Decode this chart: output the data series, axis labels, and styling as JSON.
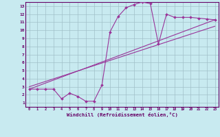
{
  "xlabel": "Windchill (Refroidissement éolien,°C)",
  "bg_color": "#c8eaf0",
  "line_color": "#993399",
  "grid_color": "#a0c0c8",
  "axis_color": "#660066",
  "spine_color": "#660066",
  "x_data": [
    0,
    1,
    2,
    3,
    4,
    5,
    6,
    7,
    8,
    9,
    10,
    11,
    12,
    13,
    14,
    15,
    16,
    17,
    18,
    19,
    20,
    21,
    22,
    23
  ],
  "y_data": [
    2.7,
    2.7,
    2.7,
    2.7,
    1.5,
    2.2,
    1.8,
    1.2,
    1.2,
    3.2,
    9.8,
    11.7,
    12.8,
    13.2,
    13.5,
    13.3,
    8.3,
    12.0,
    11.6,
    11.6,
    11.6,
    11.5,
    11.4,
    11.3
  ],
  "trend1_x": [
    0,
    23
  ],
  "trend1_y": [
    2.7,
    11.3
  ],
  "trend2_x": [
    0,
    23
  ],
  "trend2_y": [
    3.0,
    10.5
  ],
  "xlim": [
    -0.5,
    23.5
  ],
  "ylim": [
    0.5,
    13.5
  ],
  "xticks": [
    0,
    1,
    2,
    3,
    4,
    5,
    6,
    7,
    8,
    9,
    10,
    11,
    12,
    13,
    14,
    15,
    16,
    17,
    18,
    19,
    20,
    21,
    22,
    23
  ],
  "yticks": [
    1,
    2,
    3,
    4,
    5,
    6,
    7,
    8,
    9,
    10,
    11,
    12,
    13
  ],
  "marker": "D",
  "markersize": 2.0,
  "linewidth": 0.8,
  "trend_linewidth": 0.8
}
